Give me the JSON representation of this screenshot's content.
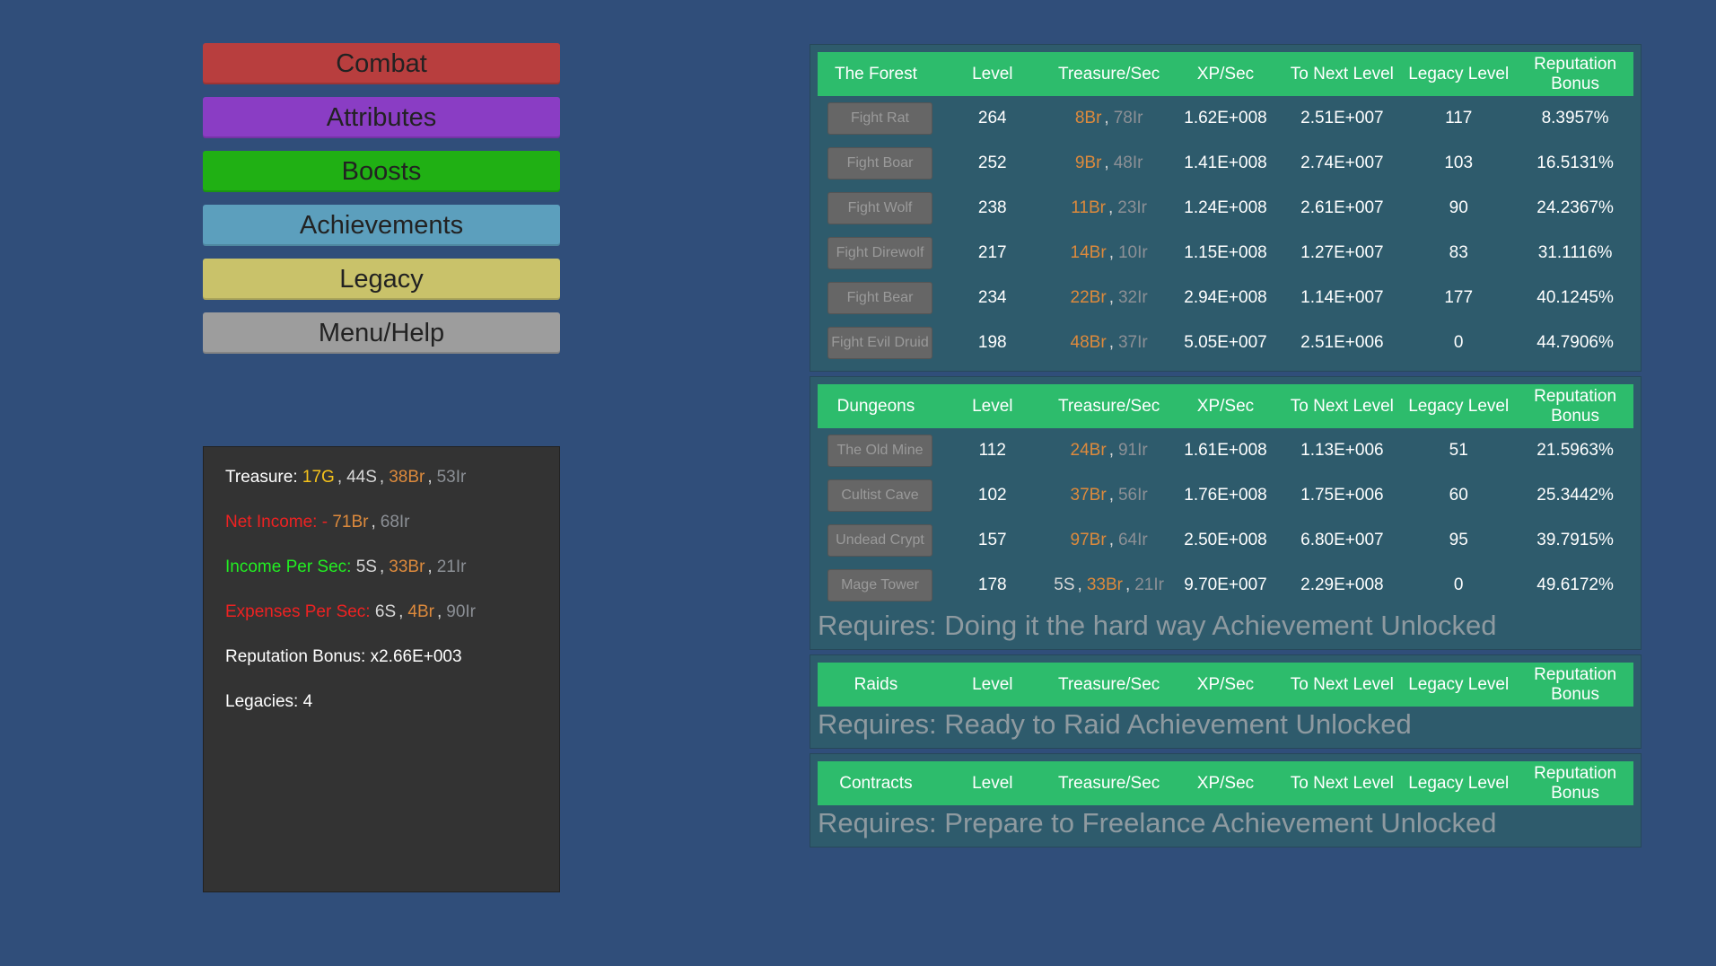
{
  "menu": [
    {
      "label": "Combat",
      "color": "#b83e3e"
    },
    {
      "label": "Attributes",
      "color": "#8a3dc4"
    },
    {
      "label": "Boosts",
      "color": "#20b014"
    },
    {
      "label": "Achievements",
      "color": "#5c9fbd"
    },
    {
      "label": "Legacy",
      "color": "#c9c26a"
    },
    {
      "label": "Menu/Help",
      "color": "#9d9d9d"
    }
  ],
  "stats": {
    "separator": ",",
    "lines": [
      {
        "label": "Treasure:",
        "color": "#ffffff",
        "parts": [
          {
            "text": "17G",
            "color": "#f5c21b"
          },
          {
            "text": "44S",
            "color": "#d8d8d8"
          },
          {
            "text": "38Br",
            "color": "#dd8a3c"
          },
          {
            "text": "53Ir",
            "color": "#8c9096"
          }
        ]
      },
      {
        "label": "Net Income: -",
        "color": "#ee2222",
        "parts": [
          {
            "text": "71Br",
            "color": "#dd8a3c"
          },
          {
            "text": "68Ir",
            "color": "#8c9096"
          }
        ]
      },
      {
        "label": "Income Per Sec:",
        "color": "#22ee22",
        "parts": [
          {
            "text": "5S",
            "color": "#d8d8d8"
          },
          {
            "text": "33Br",
            "color": "#dd8a3c"
          },
          {
            "text": "21Ir",
            "color": "#8c9096"
          }
        ]
      },
      {
        "label": "Expenses Per Sec:",
        "color": "#ee2222",
        "parts": [
          {
            "text": "6S",
            "color": "#d8d8d8"
          },
          {
            "text": "4Br",
            "color": "#dd8a3c"
          },
          {
            "text": "90Ir",
            "color": "#8c9096"
          }
        ]
      },
      {
        "label": "Reputation Bonus: x2.66E+003",
        "color": "#ffffff",
        "parts": []
      },
      {
        "label": "Legacies: 4",
        "color": "#ffffff",
        "parts": []
      }
    ]
  },
  "sections": [
    {
      "columns": [
        "The Forest",
        "Level",
        "Treasure/Sec",
        "XP/Sec",
        "To Next Level",
        "Legacy Level",
        "Reputation Bonus"
      ],
      "rows": [
        {
          "button": "Fight Rat",
          "level": 264,
          "treasure": [
            {
              "text": "8Br",
              "color": "#dd8a3c"
            },
            {
              "text": "78Ir",
              "color": "#8c9096"
            }
          ],
          "xp": "1.62E+008",
          "next": "2.51E+007",
          "legacy": 117,
          "rep": "8.3957%"
        },
        {
          "button": "Fight Boar",
          "level": 252,
          "treasure": [
            {
              "text": "9Br",
              "color": "#dd8a3c"
            },
            {
              "text": "48Ir",
              "color": "#8c9096"
            }
          ],
          "xp": "1.41E+008",
          "next": "2.74E+007",
          "legacy": 103,
          "rep": "16.5131%"
        },
        {
          "button": "Fight Wolf",
          "level": 238,
          "treasure": [
            {
              "text": "11Br",
              "color": "#dd8a3c"
            },
            {
              "text": "23Ir",
              "color": "#8c9096"
            }
          ],
          "xp": "1.24E+008",
          "next": "2.61E+007",
          "legacy": 90,
          "rep": "24.2367%"
        },
        {
          "button": "Fight Direwolf",
          "level": 217,
          "treasure": [
            {
              "text": "14Br",
              "color": "#dd8a3c"
            },
            {
              "text": "10Ir",
              "color": "#8c9096"
            }
          ],
          "xp": "1.15E+008",
          "next": "1.27E+007",
          "legacy": 83,
          "rep": "31.1116%"
        },
        {
          "button": "Fight Bear",
          "level": 234,
          "treasure": [
            {
              "text": "22Br",
              "color": "#dd8a3c"
            },
            {
              "text": "32Ir",
              "color": "#8c9096"
            }
          ],
          "xp": "2.94E+008",
          "next": "1.14E+007",
          "legacy": 177,
          "rep": "40.1245%"
        },
        {
          "button": "Fight Evil Druid",
          "level": 198,
          "treasure": [
            {
              "text": "48Br",
              "color": "#dd8a3c"
            },
            {
              "text": "37Ir",
              "color": "#8c9096"
            }
          ],
          "xp": "5.05E+007",
          "next": "2.51E+006",
          "legacy": 0,
          "rep": "44.7906%"
        }
      ]
    },
    {
      "columns": [
        "Dungeons",
        "Level",
        "Treasure/Sec",
        "XP/Sec",
        "To Next Level",
        "Legacy Level",
        "Reputation Bonus"
      ],
      "rows": [
        {
          "button": "The Old Mine",
          "level": 112,
          "treasure": [
            {
              "text": "24Br",
              "color": "#dd8a3c"
            },
            {
              "text": "91Ir",
              "color": "#8c9096"
            }
          ],
          "xp": "1.61E+008",
          "next": "1.13E+006",
          "legacy": 51,
          "rep": "21.5963%"
        },
        {
          "button": "Cultist Cave",
          "level": 102,
          "treasure": [
            {
              "text": "37Br",
              "color": "#dd8a3c"
            },
            {
              "text": "56Ir",
              "color": "#8c9096"
            }
          ],
          "xp": "1.76E+008",
          "next": "1.75E+006",
          "legacy": 60,
          "rep": "25.3442%"
        },
        {
          "button": "Undead Crypt",
          "level": 157,
          "treasure": [
            {
              "text": "97Br",
              "color": "#dd8a3c"
            },
            {
              "text": "64Ir",
              "color": "#8c9096"
            }
          ],
          "xp": "2.50E+008",
          "next": "6.80E+007",
          "legacy": 95,
          "rep": "39.7915%"
        },
        {
          "button": "Mage Tower",
          "level": 178,
          "treasure": [
            {
              "text": "5S",
              "color": "#d8d8d8"
            },
            {
              "text": "33Br",
              "color": "#dd8a3c"
            },
            {
              "text": "21Ir",
              "color": "#8c9096"
            }
          ],
          "xp": "9.70E+007",
          "next": "2.29E+008",
          "legacy": 0,
          "rep": "49.6172%"
        }
      ],
      "requirement": "Requires: Doing it the hard way Achievement Unlocked"
    },
    {
      "columns": [
        "Raids",
        "Level",
        "Treasure/Sec",
        "XP/Sec",
        "To Next Level",
        "Legacy Level",
        "Reputation Bonus"
      ],
      "rows": [],
      "requirement": "Requires: Ready to Raid Achievement Unlocked"
    },
    {
      "columns": [
        "Contracts",
        "Level",
        "Treasure/Sec",
        "XP/Sec",
        "To Next Level",
        "Legacy Level",
        "Reputation Bonus"
      ],
      "rows": [],
      "requirement": "Requires: Prepare to Freelance Achievement Unlocked"
    }
  ]
}
